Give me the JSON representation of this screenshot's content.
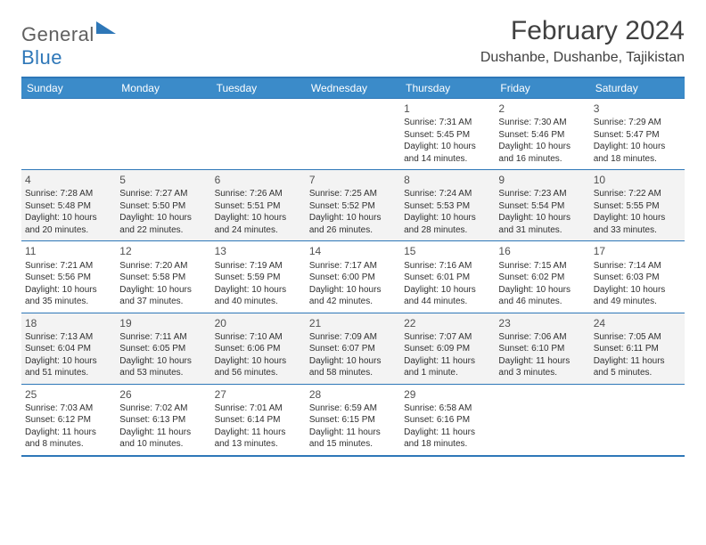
{
  "brand": {
    "part1": "General",
    "part2": "Blue"
  },
  "title": "February 2024",
  "location": "Dushanbe, Dushanbe, Tajikistan",
  "colors": {
    "header_bg": "#3b8bc9",
    "border": "#2e77b8",
    "shade": "#f3f3f3",
    "text": "#303030"
  },
  "weekdays": [
    "Sunday",
    "Monday",
    "Tuesday",
    "Wednesday",
    "Thursday",
    "Friday",
    "Saturday"
  ],
  "weeks": [
    {
      "shaded": false,
      "days": [
        null,
        null,
        null,
        null,
        {
          "n": "1",
          "sunrise": "7:31 AM",
          "sunset": "5:45 PM",
          "daylight": "10 hours and 14 minutes."
        },
        {
          "n": "2",
          "sunrise": "7:30 AM",
          "sunset": "5:46 PM",
          "daylight": "10 hours and 16 minutes."
        },
        {
          "n": "3",
          "sunrise": "7:29 AM",
          "sunset": "5:47 PM",
          "daylight": "10 hours and 18 minutes."
        }
      ]
    },
    {
      "shaded": true,
      "days": [
        {
          "n": "4",
          "sunrise": "7:28 AM",
          "sunset": "5:48 PM",
          "daylight": "10 hours and 20 minutes."
        },
        {
          "n": "5",
          "sunrise": "7:27 AM",
          "sunset": "5:50 PM",
          "daylight": "10 hours and 22 minutes."
        },
        {
          "n": "6",
          "sunrise": "7:26 AM",
          "sunset": "5:51 PM",
          "daylight": "10 hours and 24 minutes."
        },
        {
          "n": "7",
          "sunrise": "7:25 AM",
          "sunset": "5:52 PM",
          "daylight": "10 hours and 26 minutes."
        },
        {
          "n": "8",
          "sunrise": "7:24 AM",
          "sunset": "5:53 PM",
          "daylight": "10 hours and 28 minutes."
        },
        {
          "n": "9",
          "sunrise": "7:23 AM",
          "sunset": "5:54 PM",
          "daylight": "10 hours and 31 minutes."
        },
        {
          "n": "10",
          "sunrise": "7:22 AM",
          "sunset": "5:55 PM",
          "daylight": "10 hours and 33 minutes."
        }
      ]
    },
    {
      "shaded": false,
      "days": [
        {
          "n": "11",
          "sunrise": "7:21 AM",
          "sunset": "5:56 PM",
          "daylight": "10 hours and 35 minutes."
        },
        {
          "n": "12",
          "sunrise": "7:20 AM",
          "sunset": "5:58 PM",
          "daylight": "10 hours and 37 minutes."
        },
        {
          "n": "13",
          "sunrise": "7:19 AM",
          "sunset": "5:59 PM",
          "daylight": "10 hours and 40 minutes."
        },
        {
          "n": "14",
          "sunrise": "7:17 AM",
          "sunset": "6:00 PM",
          "daylight": "10 hours and 42 minutes."
        },
        {
          "n": "15",
          "sunrise": "7:16 AM",
          "sunset": "6:01 PM",
          "daylight": "10 hours and 44 minutes."
        },
        {
          "n": "16",
          "sunrise": "7:15 AM",
          "sunset": "6:02 PM",
          "daylight": "10 hours and 46 minutes."
        },
        {
          "n": "17",
          "sunrise": "7:14 AM",
          "sunset": "6:03 PM",
          "daylight": "10 hours and 49 minutes."
        }
      ]
    },
    {
      "shaded": true,
      "days": [
        {
          "n": "18",
          "sunrise": "7:13 AM",
          "sunset": "6:04 PM",
          "daylight": "10 hours and 51 minutes."
        },
        {
          "n": "19",
          "sunrise": "7:11 AM",
          "sunset": "6:05 PM",
          "daylight": "10 hours and 53 minutes."
        },
        {
          "n": "20",
          "sunrise": "7:10 AM",
          "sunset": "6:06 PM",
          "daylight": "10 hours and 56 minutes."
        },
        {
          "n": "21",
          "sunrise": "7:09 AM",
          "sunset": "6:07 PM",
          "daylight": "10 hours and 58 minutes."
        },
        {
          "n": "22",
          "sunrise": "7:07 AM",
          "sunset": "6:09 PM",
          "daylight": "11 hours and 1 minute."
        },
        {
          "n": "23",
          "sunrise": "7:06 AM",
          "sunset": "6:10 PM",
          "daylight": "11 hours and 3 minutes."
        },
        {
          "n": "24",
          "sunrise": "7:05 AM",
          "sunset": "6:11 PM",
          "daylight": "11 hours and 5 minutes."
        }
      ]
    },
    {
      "shaded": false,
      "days": [
        {
          "n": "25",
          "sunrise": "7:03 AM",
          "sunset": "6:12 PM",
          "daylight": "11 hours and 8 minutes."
        },
        {
          "n": "26",
          "sunrise": "7:02 AM",
          "sunset": "6:13 PM",
          "daylight": "11 hours and 10 minutes."
        },
        {
          "n": "27",
          "sunrise": "7:01 AM",
          "sunset": "6:14 PM",
          "daylight": "11 hours and 13 minutes."
        },
        {
          "n": "28",
          "sunrise": "6:59 AM",
          "sunset": "6:15 PM",
          "daylight": "11 hours and 15 minutes."
        },
        {
          "n": "29",
          "sunrise": "6:58 AM",
          "sunset": "6:16 PM",
          "daylight": "11 hours and 18 minutes."
        },
        null,
        null
      ]
    }
  ],
  "labels": {
    "sunrise": "Sunrise: ",
    "sunset": "Sunset: ",
    "daylight": "Daylight: "
  }
}
